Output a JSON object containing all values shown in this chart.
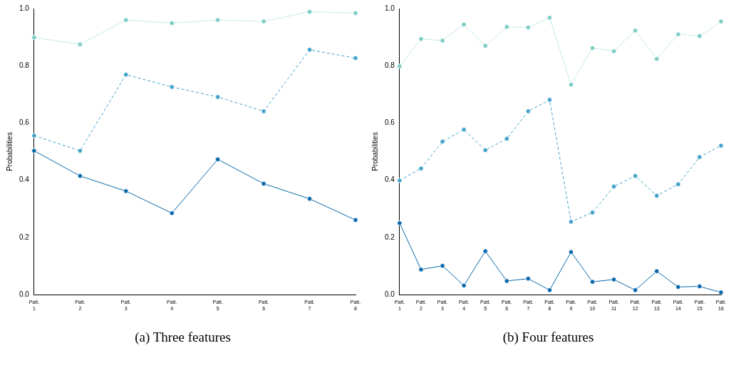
{
  "chart_data": [
    {
      "type": "line",
      "title": "(a) Three features",
      "ylabel": "Probabilities",
      "categories": [
        "Patt. 1",
        "Patt. 2",
        "Patt. 3",
        "Patt. 4",
        "Patt. 5",
        "Patt. 6",
        "Patt. 7",
        "Patt. 8"
      ],
      "ylim": [
        0,
        1
      ],
      "yticks": [
        {
          "value": 0,
          "label": "0.0"
        },
        {
          "value": 0.2,
          "label": "0.2"
        },
        {
          "value": 0.4,
          "label": "0.4"
        },
        {
          "value": 0.6,
          "label": "0.6"
        },
        {
          "value": 0.8,
          "label": "0.8"
        },
        {
          "value": 1,
          "label": "1.0"
        }
      ],
      "grid": false,
      "legend": false,
      "marker": "circle",
      "series": [
        {
          "color": "#0868ac",
          "line_style": "solid",
          "values": [
            0.503,
            0.415,
            0.362,
            0.285,
            0.473,
            0.388,
            0.335,
            0.261
          ]
        },
        {
          "color": "#43a2ca",
          "line_style": "dashed",
          "values": [
            0.556,
            0.503,
            0.769,
            0.726,
            0.691,
            0.641,
            0.856,
            0.827
          ]
        },
        {
          "color": "#7bccc4",
          "line_style": "dotted",
          "values": [
            0.899,
            0.875,
            0.96,
            0.949,
            0.96,
            0.955,
            0.989,
            0.984
          ]
        }
      ]
    },
    {
      "type": "line",
      "title": "(b) Four features",
      "ylabel": "Probabilities",
      "categories": [
        "Patt. 1",
        "Patt. 2",
        "Patt. 3",
        "Patt. 4",
        "Patt. 5",
        "Patt. 6",
        "Patt. 7",
        "Patt. 8",
        "Patt. 9",
        "Patt. 10",
        "Patt. 11",
        "Patt. 12",
        "Patt. 13",
        "Patt. 14",
        "Patt. 15",
        "Patt. 16"
      ],
      "ylim": [
        0,
        1
      ],
      "yticks": [
        {
          "value": 0,
          "label": "0.0"
        },
        {
          "value": 0.2,
          "label": "0.2"
        },
        {
          "value": 0.4,
          "label": "0.4"
        },
        {
          "value": 0.6,
          "label": "0.6"
        },
        {
          "value": 0.8,
          "label": "0.8"
        },
        {
          "value": 1,
          "label": "1.0"
        }
      ],
      "grid": false,
      "legend": false,
      "marker": "circle",
      "series": [
        {
          "color": "#0868ac",
          "line_style": "solid",
          "values": [
            0.25,
            0.088,
            0.101,
            0.032,
            0.152,
            0.048,
            0.056,
            0.016,
            0.149,
            0.045,
            0.053,
            0.016,
            0.082,
            0.027,
            0.029,
            0.008
          ]
        },
        {
          "color": "#43a2ca",
          "line_style": "dashed",
          "values": [
            0.399,
            0.441,
            0.535,
            0.577,
            0.505,
            0.545,
            0.641,
            0.681,
            0.255,
            0.287,
            0.378,
            0.415,
            0.346,
            0.386,
            0.481,
            0.521
          ]
        },
        {
          "color": "#7bccc4",
          "line_style": "dotted",
          "values": [
            0.798,
            0.894,
            0.888,
            0.944,
            0.87,
            0.936,
            0.934,
            0.968,
            0.734,
            0.862,
            0.851,
            0.923,
            0.824,
            0.91,
            0.904,
            0.955
          ]
        }
      ]
    }
  ]
}
